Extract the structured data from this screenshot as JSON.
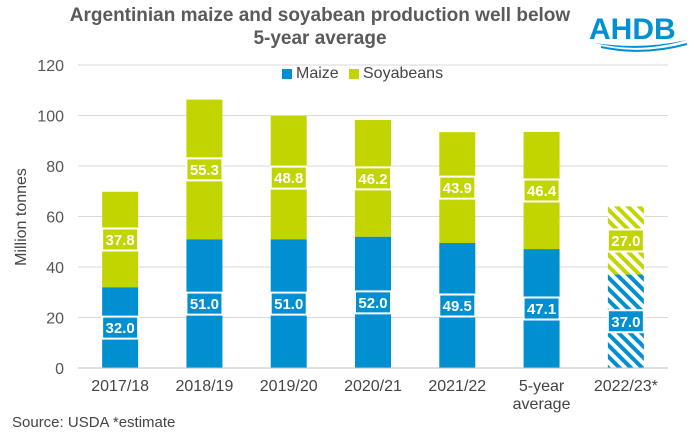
{
  "colors": {
    "maize": "#008fd0",
    "soyabeans": "#c2d500",
    "brand": "#0091d5",
    "text": "#555555"
  },
  "header": {
    "title_line1": "Argentinian maize and soyabean production well below",
    "title_line2": "5-year average"
  },
  "logo": {
    "text": "AHDB"
  },
  "footer": {
    "source": "Source: USDA   *estimate"
  },
  "chart_data": {
    "type": "bar",
    "stacked": true,
    "title": "Argentinian maize and soyabean production well below 5-year average",
    "ylabel": "Million tonnes",
    "xlabel": "",
    "ylim": [
      0,
      120
    ],
    "yticks": [
      0,
      20,
      40,
      60,
      80,
      100,
      120
    ],
    "categories": [
      "2017/18",
      "2018/19",
      "2019/20",
      "2020/21",
      "2021/22",
      "5-year average",
      "2022/23*"
    ],
    "category_lines": [
      [
        "2017/18"
      ],
      [
        "2018/19"
      ],
      [
        "2019/20"
      ],
      [
        "2020/21"
      ],
      [
        "2021/22"
      ],
      [
        "5-year",
        "average"
      ],
      [
        "2022/23*"
      ]
    ],
    "hatched_categories": [
      "2022/23*"
    ],
    "legend": [
      "Maize",
      "Soyabeans"
    ],
    "legend_position": "top-center",
    "series": [
      {
        "name": "Maize",
        "values": [
          32.0,
          51.0,
          51.0,
          52.0,
          49.5,
          47.1,
          37.0
        ],
        "labels": [
          "32.0",
          "51.0",
          "51.0",
          "52.0",
          "49.5",
          "47.1",
          "37.0"
        ]
      },
      {
        "name": "Soyabeans",
        "values": [
          37.8,
          55.3,
          48.8,
          46.2,
          43.9,
          46.4,
          27.0
        ],
        "labels": [
          "37.8",
          "55.3",
          "48.8",
          "46.2",
          "43.9",
          "46.4",
          "27.0"
        ]
      }
    ]
  }
}
